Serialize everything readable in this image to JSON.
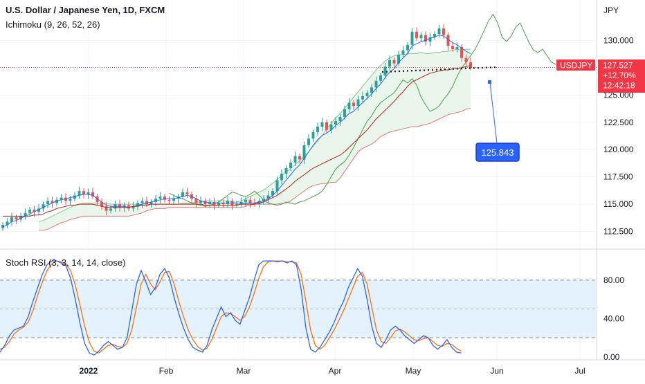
{
  "header": {
    "title": "U.S. Dollar / Japanese Yen, 1D, FXCM",
    "ichimoku_label": "Ichimoku (9, 26, 52, 26)",
    "stoch_label": "Stoch RSI (3, 3, 14, 14, close)"
  },
  "currency_label": "JPY",
  "price_tag": {
    "symbol": "USDJPY",
    "price": "127.527",
    "change": "+12.70%",
    "countdown": "12:42:18"
  },
  "annotation": {
    "value": "125.843"
  },
  "colors": {
    "price_tag": "#f23645",
    "annotation": "#2962ff",
    "candle_up": "#26a69a",
    "candle_down": "#ef5350",
    "tenkan": "#2962ff",
    "kijun": "#b71c1c",
    "chikou": "#43a047",
    "cloud": "#e8f5e9",
    "stoch_k": "#2962ff",
    "stoch_d": "#ff6d00",
    "stoch_band": "#e3f2fd"
  },
  "chart_data": [
    {
      "type": "candlestick",
      "title": "U.S. Dollar / Japanese Yen, 1D, FXCM",
      "ylabel": "JPY",
      "ylim": [
        111.2,
        133.2
      ],
      "y_ticks": [
        "130.000",
        "127.500",
        "125.000",
        "122.500",
        "120.000",
        "117.500",
        "115.000",
        "112.500"
      ],
      "x_ticks": [
        "2022",
        "Feb",
        "Mar",
        "Apr",
        "May",
        "Jun",
        "Jul"
      ],
      "last_price": 127.527,
      "close": [
        113.1,
        113.4,
        113.8,
        113.6,
        113.9,
        114.2,
        114.5,
        114.3,
        114.6,
        115.0,
        115.3,
        115.1,
        115.4,
        115.6,
        115.3,
        115.5,
        115.8,
        116.2,
        115.9,
        116.1,
        115.7,
        115.2,
        114.8,
        114.4,
        114.6,
        115.0,
        114.7,
        114.9,
        114.6,
        114.8,
        115.1,
        115.3,
        115.0,
        115.2,
        115.5,
        115.7,
        115.4,
        115.3,
        115.5,
        115.7,
        116.1,
        115.9,
        115.5,
        115.1,
        115.3,
        115.0,
        115.2,
        114.9,
        115.1,
        115.0,
        115.3,
        114.9,
        115.0,
        115.2,
        115.4,
        115.1,
        115.0,
        115.3,
        115.5,
        115.8,
        116.2,
        117.2,
        117.8,
        118.3,
        118.8,
        119.4,
        119.1,
        120.4,
        121.0,
        121.6,
        122.1,
        122.5,
        121.8,
        122.3,
        122.6,
        123.0,
        123.7,
        124.3,
        124.0,
        124.6,
        124.9,
        125.2,
        125.7,
        126.3,
        126.8,
        127.6,
        128.2,
        127.9,
        128.7,
        129.1,
        129.6,
        130.8,
        130.2,
        130.5,
        129.9,
        130.3,
        130.6,
        131.1,
        130.5,
        129.5,
        129.2,
        129.4,
        128.4,
        128.0,
        127.527
      ],
      "tenkan": [
        112.9,
        113.1,
        113.4,
        113.5,
        113.7,
        113.9,
        114.1,
        114.3,
        114.5,
        114.7,
        114.9,
        115.1,
        115.3,
        115.4,
        115.5,
        115.6,
        115.7,
        115.8,
        115.9,
        115.9,
        115.8,
        115.5,
        115.2,
        114.9,
        114.8,
        114.8,
        114.8,
        114.8,
        114.7,
        114.8,
        114.9,
        115.0,
        115.1,
        115.2,
        115.3,
        115.4,
        115.5,
        115.5,
        115.5,
        115.6,
        115.7,
        115.8,
        115.7,
        115.5,
        115.3,
        115.2,
        115.1,
        115.1,
        115.1,
        115.1,
        115.1,
        115.1,
        115.1,
        115.1,
        115.1,
        115.1,
        115.1,
        115.2,
        115.3,
        115.5,
        115.8,
        116.2,
        116.7,
        117.2,
        117.7,
        118.2,
        118.6,
        119.2,
        119.8,
        120.4,
        120.9,
        121.3,
        121.5,
        121.8,
        122.2,
        122.5,
        122.9,
        123.3,
        123.5,
        123.9,
        124.3,
        124.7,
        125.1,
        125.6,
        126.0,
        126.6,
        127.1,
        127.4,
        128.0,
        128.4,
        128.8,
        129.5,
        129.7,
        129.9,
        130.0,
        130.2,
        130.3,
        130.5,
        130.4,
        130.1,
        129.8,
        129.6,
        129.3,
        129.0,
        128.8
      ],
      "kijun": [
        113.9,
        113.9,
        113.9,
        113.9,
        113.9,
        113.9,
        113.9,
        114.0,
        114.0,
        114.1,
        114.3,
        114.4,
        114.6,
        114.7,
        114.8,
        114.9,
        114.9,
        115.0,
        115.0,
        115.0,
        115.0,
        114.9,
        114.8,
        114.7,
        114.7,
        114.7,
        114.7,
        114.7,
        114.7,
        114.8,
        114.8,
        114.9,
        114.9,
        115.0,
        115.0,
        115.0,
        115.0,
        115.0,
        115.0,
        115.0,
        115.0,
        115.0,
        115.0,
        115.0,
        115.0,
        114.9,
        114.9,
        114.9,
        114.9,
        114.9,
        114.9,
        114.9,
        114.9,
        115.0,
        115.0,
        115.0,
        115.0,
        115.1,
        115.2,
        115.4,
        115.6,
        115.8,
        116.1,
        116.4,
        116.7,
        117.1,
        117.4,
        117.7,
        118.0,
        118.3,
        118.5,
        118.7,
        118.9,
        119.1,
        119.3,
        119.5,
        119.8,
        120.2,
        120.6,
        121.0,
        121.4,
        121.8,
        122.3,
        122.8,
        123.2,
        123.6,
        124.0,
        124.4,
        124.9,
        125.3,
        125.8,
        126.2,
        126.4,
        126.6,
        126.8,
        127.0,
        127.1,
        127.2,
        127.3,
        127.3,
        127.4,
        127.4,
        127.5,
        127.6,
        127.7
      ],
      "chikou": [
        116.0,
        115.8,
        115.6,
        115.5,
        115.3,
        115.1,
        115.0,
        114.9,
        114.8,
        114.9,
        115.0,
        115.2,
        115.5,
        115.8,
        116.1,
        116.0,
        115.8,
        115.7,
        115.9,
        116.2,
        115.8,
        115.4,
        115.1,
        115.0,
        114.9,
        115.0,
        115.2,
        115.1,
        115.0,
        115.2,
        115.3,
        115.5,
        115.7,
        115.9,
        116.2,
        116.8,
        117.5,
        118.2,
        118.6,
        118.9,
        119.5,
        120.2,
        121.0,
        121.8,
        122.6,
        123.1,
        123.8,
        124.3,
        124.6,
        124.9,
        125.2,
        125.8,
        126.4,
        126.1,
        126.5,
        125.9,
        124.8,
        124.1,
        123.5,
        123.7,
        124.0,
        124.6,
        125.1,
        125.8,
        126.7,
        127.5,
        128.0,
        128.6,
        129.2,
        130.0,
        130.9,
        131.8,
        132.4,
        131.6,
        130.3,
        129.9,
        130.4,
        131.2,
        131.6,
        130.7,
        129.8,
        129.1,
        128.9,
        129.2,
        128.6,
        128.0,
        127.8
      ],
      "senkou_a": [
        113.4,
        113.5,
        113.7,
        113.9,
        114.1,
        114.3,
        114.5,
        114.7,
        114.9,
        115.0,
        115.1,
        115.1,
        115.1,
        115.1,
        115.1,
        115.1,
        115.0,
        115.0,
        115.0,
        115.0,
        115.0,
        115.0,
        115.0,
        115.0,
        115.0,
        115.0,
        115.0,
        115.0,
        115.0,
        115.0,
        115.0,
        115.0,
        115.1,
        115.1,
        115.1,
        115.2,
        115.2,
        115.3,
        115.3,
        115.3,
        115.3,
        115.3,
        115.3,
        115.2,
        115.2,
        115.3,
        115.5,
        115.7,
        115.9,
        116.1,
        116.3,
        116.6,
        116.9,
        117.3,
        117.6,
        117.9,
        118.3,
        118.6,
        119.0,
        119.4,
        119.8,
        120.3,
        120.8,
        121.3,
        121.9,
        122.4,
        122.9,
        123.3,
        123.8,
        124.3,
        124.8,
        125.3,
        125.8,
        126.3,
        126.8,
        127.3,
        127.7,
        128.1,
        128.4,
        128.6,
        128.7,
        128.7,
        128.8,
        128.8,
        128.8,
        128.9,
        128.8,
        128.8,
        128.9,
        128.9,
        129.0,
        129.0,
        129.1,
        129.2,
        129.1,
        129.2,
        129.2
      ],
      "senkou_b": [
        112.6,
        112.6,
        112.7,
        112.9,
        113.1,
        113.3,
        113.4,
        113.6,
        113.7,
        113.8,
        113.9,
        113.9,
        113.9,
        113.9,
        113.9,
        113.9,
        113.9,
        113.9,
        113.9,
        113.9,
        113.9,
        114.0,
        114.1,
        114.2,
        114.4,
        114.5,
        114.6,
        114.6,
        114.6,
        114.7,
        114.7,
        114.7,
        114.7,
        114.7,
        114.7,
        114.7,
        114.7,
        114.7,
        114.7,
        114.7,
        114.7,
        114.7,
        114.7,
        114.7,
        114.7,
        114.7,
        114.8,
        114.9,
        115.0,
        115.0,
        115.0,
        115.0,
        115.0,
        115.0,
        115.1,
        115.1,
        115.3,
        115.6,
        115.9,
        116.2,
        116.5,
        116.7,
        116.8,
        116.9,
        116.9,
        117.0,
        117.0,
        117.4,
        118.0,
        118.6,
        119.2,
        119.8,
        120.1,
        120.3,
        120.5,
        120.8,
        121.2,
        121.4,
        121.6,
        121.7,
        121.8,
        121.9,
        122.0,
        122.1,
        122.1,
        122.2,
        122.3,
        122.4,
        122.6,
        122.8,
        123.0,
        123.2,
        123.3,
        123.4,
        123.5,
        123.7,
        123.8
      ]
    },
    {
      "type": "line",
      "title": "Stoch RSI (3, 3, 14, 14, close)",
      "ylim": [
        -3,
        108
      ],
      "y_ticks": [
        "80.00",
        "40.00",
        "0.00"
      ],
      "bands": [
        20,
        50,
        80
      ],
      "series": [
        {
          "values": [
            5,
            12,
            22,
            28,
            30,
            32,
            42,
            58,
            72,
            86,
            96,
            100,
            100,
            98,
            95,
            82,
            60,
            35,
            14,
            4,
            2,
            6,
            12,
            16,
            12,
            8,
            10,
            20,
            48,
            76,
            90,
            78,
            65,
            72,
            86,
            92,
            82,
            62,
            45,
            30,
            18,
            10,
            7,
            5,
            12,
            28,
            40,
            52,
            42,
            46,
            38,
            34,
            48,
            62,
            80,
            96,
            100,
            100,
            100,
            99,
            100,
            98,
            100,
            96,
            70,
            30,
            8,
            5,
            10,
            18,
            26,
            36,
            48,
            58,
            72,
            82,
            92,
            84,
            60,
            32,
            14,
            10,
            18,
            28,
            32,
            28,
            22,
            18,
            14,
            18,
            22,
            20,
            12,
            8,
            12,
            18,
            10,
            5,
            4
          ]
        },
        {
          "values": [
            8,
            10,
            16,
            24,
            28,
            31,
            36,
            48,
            64,
            78,
            90,
            97,
            100,
            99,
            97,
            90,
            75,
            54,
            32,
            15,
            6,
            4,
            8,
            12,
            13,
            11,
            10,
            14,
            28,
            52,
            76,
            86,
            76,
            70,
            78,
            88,
            89,
            76,
            58,
            42,
            28,
            18,
            11,
            7,
            9,
            18,
            30,
            42,
            46,
            45,
            42,
            38,
            42,
            52,
            66,
            82,
            94,
            99,
            100,
            100,
            100,
            99,
            99,
            98,
            86,
            58,
            28,
            12,
            8,
            12,
            20,
            28,
            38,
            48,
            60,
            72,
            84,
            88,
            76,
            52,
            28,
            16,
            14,
            20,
            27,
            29,
            26,
            22,
            18,
            17,
            19,
            20,
            16,
            12,
            11,
            14,
            13,
            9,
            6
          ]
        }
      ]
    }
  ]
}
